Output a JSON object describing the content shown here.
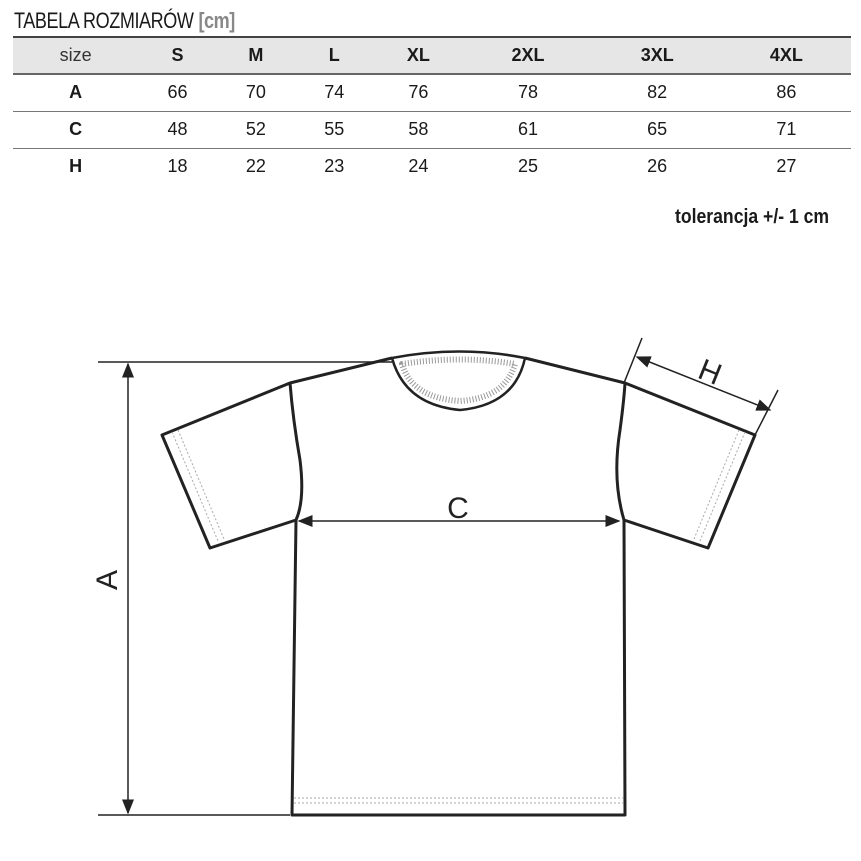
{
  "title": "TABELA ROZMIARÓW",
  "unit": "[cm]",
  "table": {
    "header": [
      "size",
      "S",
      "M",
      "L",
      "XL",
      "2XL",
      "3XL",
      "4XL"
    ],
    "rows": [
      [
        "A",
        "66",
        "70",
        "74",
        "76",
        "78",
        "82",
        "86"
      ],
      [
        "C",
        "48",
        "52",
        "55",
        "58",
        "61",
        "65",
        "71"
      ],
      [
        "H",
        "18",
        "22",
        "23",
        "24",
        "25",
        "26",
        "27"
      ]
    ]
  },
  "tolerance": "tolerancja +/- 1 cm",
  "diagram": {
    "label_a": "A",
    "label_c": "C",
    "label_h": "H"
  }
}
